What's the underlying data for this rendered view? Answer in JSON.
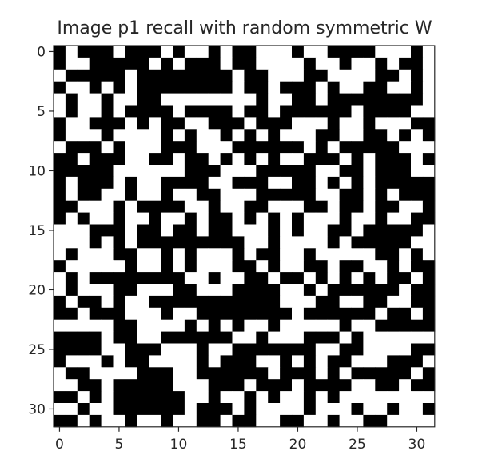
{
  "chart_data": {
    "type": "heatmap",
    "title": "Image p1 recall with random symmetric W",
    "colormap": "gray",
    "colors": {
      "on": "#ffffff",
      "off": "#000000",
      "axis": "#262626"
    },
    "grid": false,
    "xlim": [
      -0.5,
      31.5
    ],
    "ylim": [
      31.5,
      -0.5
    ],
    "xticks": [
      0,
      5,
      10,
      15,
      20,
      25,
      30
    ],
    "yticks": [
      0,
      5,
      10,
      15,
      20,
      25,
      30
    ],
    "rows": [
      "01000100010110100111011000011101",
      "01100000101000100111101101101001",
      "10000010000000010011100111100101",
      "01101010000000010010001011001101",
      "10110110011111111011001000000001",
      "10110100001000010010000001000011",
      "01100010100110001000111011011100",
      "01110111101011010101110011001010",
      "10001011100011100000010100000111",
      "00100011001001010101100010100010",
      "00000111111000111000001100100011",
      "01000101100001100011001010100000",
      "01001101101100111000001100101000",
      "00111010000110110011100100100110",
      "01011011011010010101011101101100",
      "11100010010010011101011001000001",
      "11101010000000001101111010000011",
      "10111001101011101001101111100101",
      "01111101101011100101100100110100",
      "10100000000110110010010101010010",
      "10111001110011100001101000000100",
      "01001011000000000001110011001100",
      "00100011101100000000100000010010",
      "11111001111010101101111101100000",
      "00001001100000011011100010111111",
      "00001100011101100000001100111100",
      "01110100111101000110101001110001",
      "10011110001100000010001010000010",
      "11001000001110001000100001100100",
      "00101000000110110101101011111111",
      "11011000000100010111101110110110",
      "00101101101100100110011011001111"
    ]
  }
}
